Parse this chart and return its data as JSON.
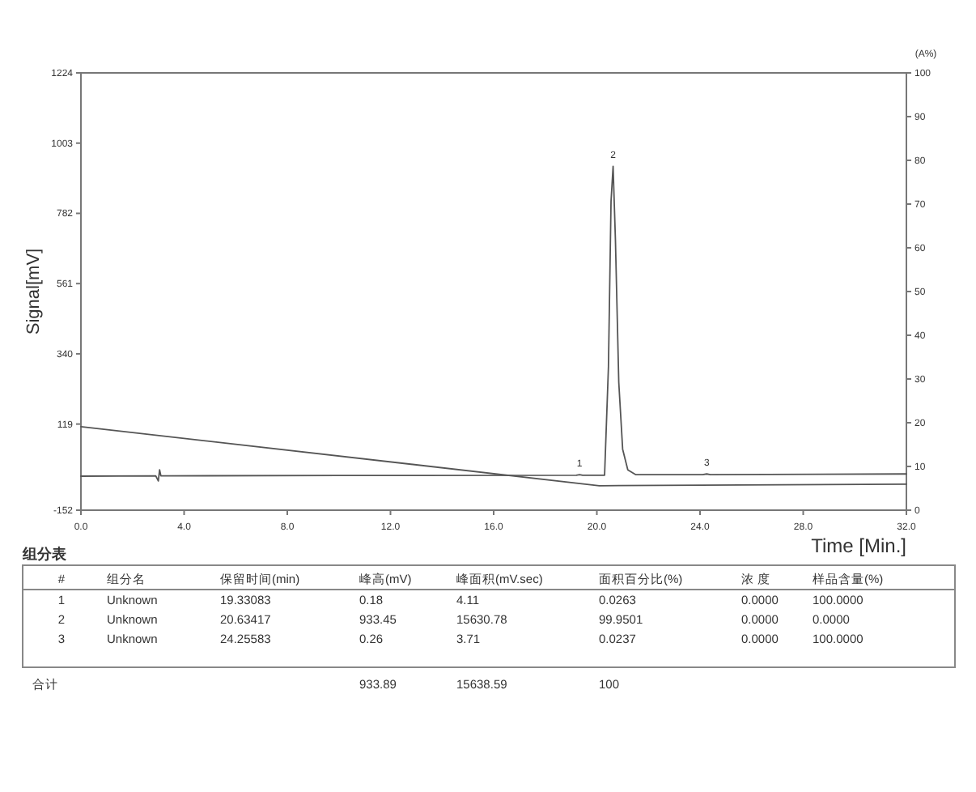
{
  "chart_data": [
    {
      "type": "line",
      "xlabel": "Time [Min.]",
      "ylabel": "Signal[mV]",
      "y2label": "(A%)",
      "xlim": [
        0,
        32
      ],
      "xticks": [
        {
          "value": 0,
          "label": "0.0"
        },
        {
          "value": 4,
          "label": "4.0"
        },
        {
          "value": 8,
          "label": "8.0"
        },
        {
          "value": 12,
          "label": "12.0"
        },
        {
          "value": 16,
          "label": "16.0"
        },
        {
          "value": 20,
          "label": "20.0"
        },
        {
          "value": 24,
          "label": "24.0"
        },
        {
          "value": 28,
          "label": "28.0"
        },
        {
          "value": 32,
          "label": "32.0"
        }
      ],
      "ylim": [
        -152,
        1224
      ],
      "yticks": [
        -152,
        119,
        340,
        561,
        782,
        1003,
        1224
      ],
      "y2lim": [
        0,
        100
      ],
      "y2ticks": [
        0,
        10,
        20,
        30,
        40,
        50,
        60,
        70,
        80,
        90,
        100
      ],
      "series": [
        {
          "color": "#555555",
          "x": [
            0,
            2.9,
            3.0,
            3.05,
            3.1,
            3.2,
            10,
            19.2,
            19.33,
            19.45,
            20.3,
            20.45,
            20.55,
            20.63,
            20.72,
            20.85,
            21.0,
            21.2,
            21.5,
            24.1,
            24.26,
            24.4,
            32
          ],
          "values": [
            -45,
            -44,
            -60,
            -25,
            -44,
            -44,
            -43,
            -42,
            -40,
            -42,
            -42,
            300,
            820,
            930,
            700,
            250,
            40,
            -25,
            -40,
            -40,
            -38,
            -40,
            -38
          ]
        },
        {
          "color": "#555555",
          "x": [
            0,
            20.1,
            32
          ],
          "values": [
            111,
            -75,
            -70
          ]
        }
      ],
      "annotations": [
        {
          "text": "1",
          "x": 19.33,
          "y": -40
        },
        {
          "text": "2",
          "x": 20.63,
          "y": 930
        },
        {
          "text": "3",
          "x": 24.26,
          "y": -38
        }
      ],
      "grid": false
    },
    {
      "type": "other",
      "title": "组分表",
      "annotations": [
        "#",
        "组分名",
        "保留时间(min)",
        "峰高(mV)",
        "峰面积(mV.sec)",
        "面积百分比(%)",
        "浓 度",
        "样品含量(%)",
        "1",
        "Unknown",
        "19.33083",
        "0.18",
        "4.11",
        "0.0263",
        "0.0000",
        "100.0000",
        "2",
        "Unknown",
        "20.63417",
        "933.45",
        "15630.78",
        "99.9501",
        "0.0000",
        "0.0000",
        "3",
        "Unknown",
        "24.25583",
        "0.26",
        "3.71",
        "0.0237",
        "0.0000",
        "100.0000",
        "合计",
        "933.89",
        "15638.59",
        "100"
      ]
    }
  ]
}
